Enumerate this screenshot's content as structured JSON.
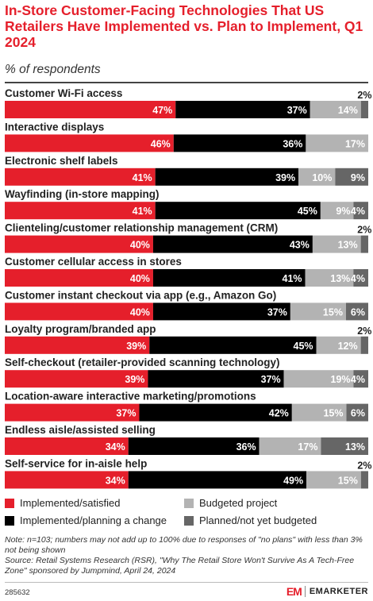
{
  "title": "In-Store Customer-Facing Technologies That US Retailers Have Implemented vs. Plan to Implement, Q1 2024",
  "subtitle": "% of respondents",
  "note": "Note: n=103; numbers may not add up to 100% due to responses of \"no plans\" with less than 3% not being shown",
  "source": "Source: Retail Systems Research (RSR), \"Why The Retail Store Won't Survive As A Tech-Free Zone\" sponsored by Jumpmind, April 24, 2024",
  "chart_id": "285632",
  "logo": {
    "mark": "EM",
    "text": "EMARKETER"
  },
  "colors": {
    "implemented_satisfied": "#e51f2b",
    "implemented_planning_change": "#000000",
    "budgeted_project": "#b3b3b3",
    "planned_not_budgeted": "#666666"
  },
  "chart_data": {
    "type": "bar",
    "stacked": true,
    "orientation": "horizontal",
    "title": "In-Store Customer-Facing Technologies That US Retailers Have Implemented vs. Plan to Implement, Q1 2024",
    "subtitle": "% of respondents",
    "legend_position": "bottom",
    "categories": [
      "Customer Wi-Fi access",
      "Interactive displays",
      "Electronic shelf labels",
      "Wayfinding (in-store mapping)",
      "Clienteling/customer relationship management (CRM)",
      "Customer cellular access in stores",
      "Customer instant checkout via app (e.g., Amazon Go)",
      "Loyalty program/branded app",
      "Self-checkout (retailer-provided scanning technology)",
      "Location-aware interactive marketing/promotions",
      "Endless aisle/assisted selling",
      "Self-service for in-aisle help"
    ],
    "series": [
      {
        "name": "Implemented/satisfied",
        "values": [
          47,
          46,
          41,
          41,
          40,
          40,
          40,
          39,
          39,
          37,
          34,
          34
        ]
      },
      {
        "name": "Implemented/planning a change",
        "values": [
          37,
          36,
          39,
          45,
          43,
          41,
          37,
          45,
          37,
          42,
          36,
          49
        ]
      },
      {
        "name": "Budgeted project",
        "values": [
          14,
          17,
          10,
          9,
          13,
          13,
          15,
          12,
          19,
          15,
          17,
          15
        ]
      },
      {
        "name": "Planned/not yet budgeted",
        "values": [
          2,
          0,
          9,
          4,
          2,
          4,
          6,
          2,
          4,
          6,
          13,
          2
        ]
      }
    ]
  }
}
